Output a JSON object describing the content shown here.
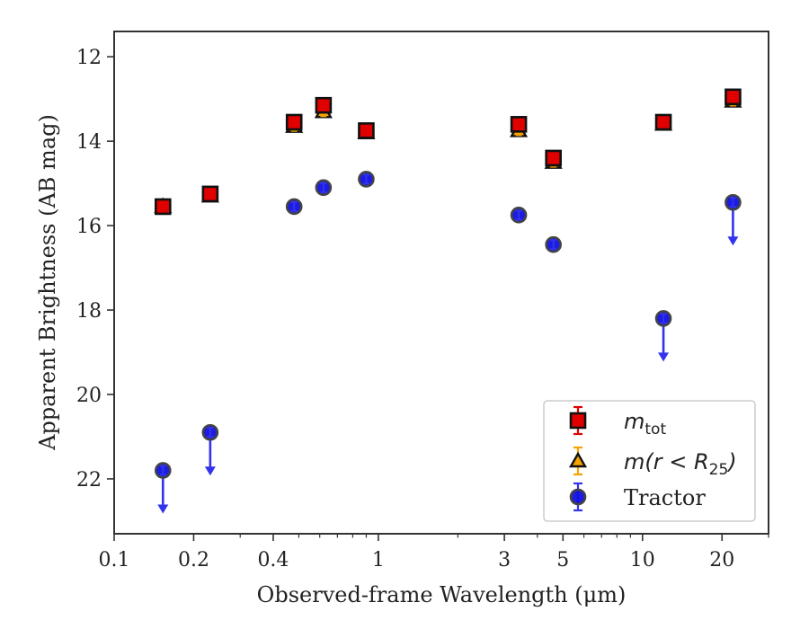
{
  "chart_data": {
    "type": "scatter",
    "xlabel": "Observed-frame Wavelength (μm)",
    "ylabel": "Apparent Brightness (AB mag)",
    "xscale": "log",
    "xlim": [
      0.1,
      30
    ],
    "ylim": [
      23.3,
      11.4
    ],
    "y_inverted": true,
    "x_ticks": [
      {
        "value": 0.1,
        "label": "0.1"
      },
      {
        "value": 0.2,
        "label": "0.2"
      },
      {
        "value": 0.4,
        "label": "0.4"
      },
      {
        "value": 1,
        "label": "1"
      },
      {
        "value": 3,
        "label": "3"
      },
      {
        "value": 5,
        "label": "5"
      },
      {
        "value": 10,
        "label": "10"
      },
      {
        "value": 20,
        "label": "20"
      }
    ],
    "x_minor_ticks": [
      0.3,
      0.5,
      0.6,
      0.7,
      0.8,
      0.9,
      2,
      4,
      6,
      7,
      8,
      9,
      30
    ],
    "y_ticks": [
      {
        "value": 12,
        "label": "12"
      },
      {
        "value": 14,
        "label": "14"
      },
      {
        "value": 16,
        "label": "16"
      },
      {
        "value": 18,
        "label": "18"
      },
      {
        "value": 20,
        "label": "20"
      },
      {
        "value": 22,
        "label": "22"
      }
    ],
    "grid": false,
    "legend_position": "lower-right",
    "series": [
      {
        "key": "m_tot",
        "name_main": "m",
        "name_sub": "tot",
        "marker": "square",
        "color": "#e00000",
        "x": [
          0.153,
          0.231,
          0.48,
          0.62,
          0.9,
          3.4,
          4.6,
          12.0,
          22.0
        ],
        "y": [
          15.55,
          15.25,
          13.55,
          13.15,
          13.75,
          13.6,
          14.4,
          13.55,
          12.95
        ],
        "upper_limit": [
          false,
          false,
          false,
          false,
          false,
          false,
          false,
          false,
          false
        ]
      },
      {
        "key": "m_r25",
        "name_main": "m(r < R",
        "name_sub": "25",
        "name_end": ")",
        "marker": "triangle",
        "color": "#f5a300",
        "x": [
          0.153,
          0.231,
          0.48,
          0.62,
          0.9,
          3.4,
          4.6,
          12.0,
          22.0
        ],
        "y": [
          15.55,
          15.3,
          13.65,
          13.3,
          13.8,
          13.75,
          14.5,
          13.6,
          13.05
        ],
        "upper_limit": [
          false,
          false,
          false,
          false,
          false,
          false,
          false,
          false,
          false
        ]
      },
      {
        "key": "tractor",
        "name": "Tractor",
        "marker": "circle",
        "color": "#1010e0",
        "x": [
          0.153,
          0.231,
          0.48,
          0.62,
          0.9,
          3.4,
          4.6,
          12.0,
          22.0
        ],
        "y": [
          21.8,
          20.9,
          15.55,
          15.1,
          14.9,
          15.75,
          16.45,
          18.2,
          15.45
        ],
        "upper_limit": [
          true,
          true,
          false,
          false,
          false,
          false,
          false,
          true,
          true
        ]
      }
    ]
  },
  "colors": {
    "frame": "#333333",
    "marker_edge": "#111111",
    "tractor_edge": "#444444",
    "arrow": "#3333ee",
    "legend_border": "#cccccc"
  }
}
